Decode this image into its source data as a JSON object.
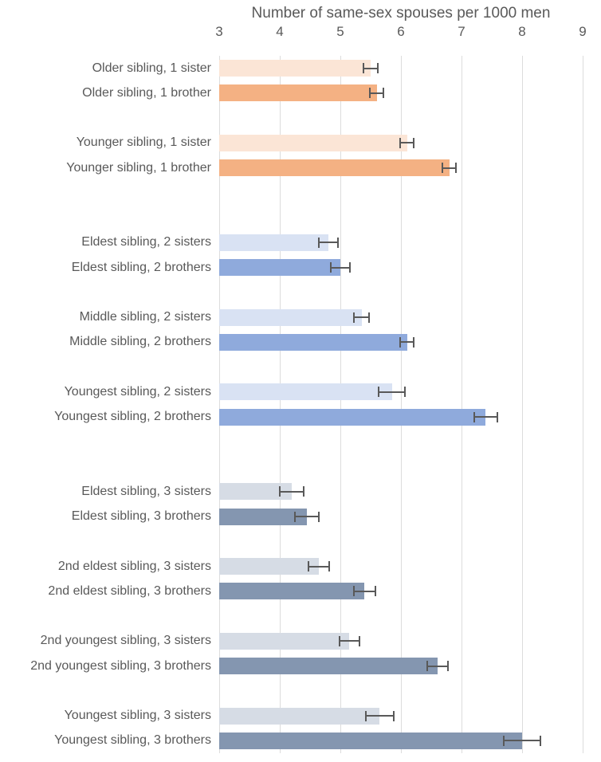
{
  "chart_data": {
    "type": "bar",
    "orientation": "horizontal",
    "title": "Number of same-sex spouses per 1000 men",
    "xlabel": "Number of same-sex spouses per 1000 men",
    "ylabel": "",
    "xlim": [
      3,
      9
    ],
    "xticks": [
      3,
      4,
      5,
      6,
      7,
      8,
      9
    ],
    "axis_position": "top",
    "grid": true,
    "legend": false,
    "error_bars": true,
    "colors": {
      "one_sibling_sister": "#FBE5D6",
      "one_sibling_brother": "#F4B183",
      "two_siblings_sister": "#D9E2F3",
      "two_siblings_brother": "#8FAADC",
      "three_siblings_sister": "#D6DCE5",
      "three_siblings_brother": "#8496B0",
      "gridline": "#DCDCDC",
      "text": "#595959",
      "error_bar": "#595959"
    },
    "sections": [
      {
        "name": "one sibling (orange)",
        "light_color": "#FBE5D6",
        "dark_color": "#F4B183",
        "pairs": [
          {
            "sister": {
              "label": "Older sibling, 1 sister",
              "value": 5.5,
              "error": 0.12
            },
            "brother": {
              "label": "Older sibling, 1 brother",
              "value": 5.6,
              "error": 0.11
            }
          },
          {
            "sister": {
              "label": "Younger sibling, 1 sister",
              "value": 6.1,
              "error": 0.11
            },
            "brother": {
              "label": "Younger sibling, 1 brother",
              "value": 6.8,
              "error": 0.11
            }
          }
        ]
      },
      {
        "name": "two siblings (blue)",
        "light_color": "#D9E2F3",
        "dark_color": "#8FAADC",
        "pairs": [
          {
            "sister": {
              "label": "Eldest sibling, 2 sisters",
              "value": 4.8,
              "error": 0.16
            },
            "brother": {
              "label": "Eldest sibling, 2 brothers",
              "value": 5.0,
              "error": 0.16
            }
          },
          {
            "sister": {
              "label": "Middle sibling, 2 sisters",
              "value": 5.35,
              "error": 0.13
            },
            "brother": {
              "label": "Middle sibling, 2 brothers",
              "value": 6.1,
              "error": 0.11
            }
          },
          {
            "sister": {
              "label": "Youngest sibling, 2 sisters",
              "value": 5.85,
              "error": 0.22
            },
            "brother": {
              "label": "Youngest sibling, 2 brothers",
              "value": 7.4,
              "error": 0.19
            }
          }
        ]
      },
      {
        "name": "three siblings (blue-gray)",
        "light_color": "#D6DCE5",
        "dark_color": "#8496B0",
        "pairs": [
          {
            "sister": {
              "label": "Eldest sibling, 3 sisters",
              "value": 4.2,
              "error": 0.2
            },
            "brother": {
              "label": "Eldest sibling, 3 brothers",
              "value": 4.45,
              "error": 0.2
            }
          },
          {
            "sister": {
              "label": "2nd eldest sibling, 3 sisters",
              "value": 4.65,
              "error": 0.17
            },
            "brother": {
              "label": "2nd eldest sibling, 3 brothers",
              "value": 5.4,
              "error": 0.18
            }
          },
          {
            "sister": {
              "label": "2nd youngest sibling, 3 sisters",
              "value": 5.15,
              "error": 0.16
            },
            "brother": {
              "label": "2nd youngest sibling, 3 brothers",
              "value": 6.6,
              "error": 0.17
            }
          },
          {
            "sister": {
              "label": "Youngest sibling, 3 sisters",
              "value": 5.65,
              "error": 0.23
            },
            "brother": {
              "label": "Youngest sibling, 3 brothers",
              "value": 8.0,
              "error": 0.3
            }
          }
        ]
      }
    ]
  }
}
